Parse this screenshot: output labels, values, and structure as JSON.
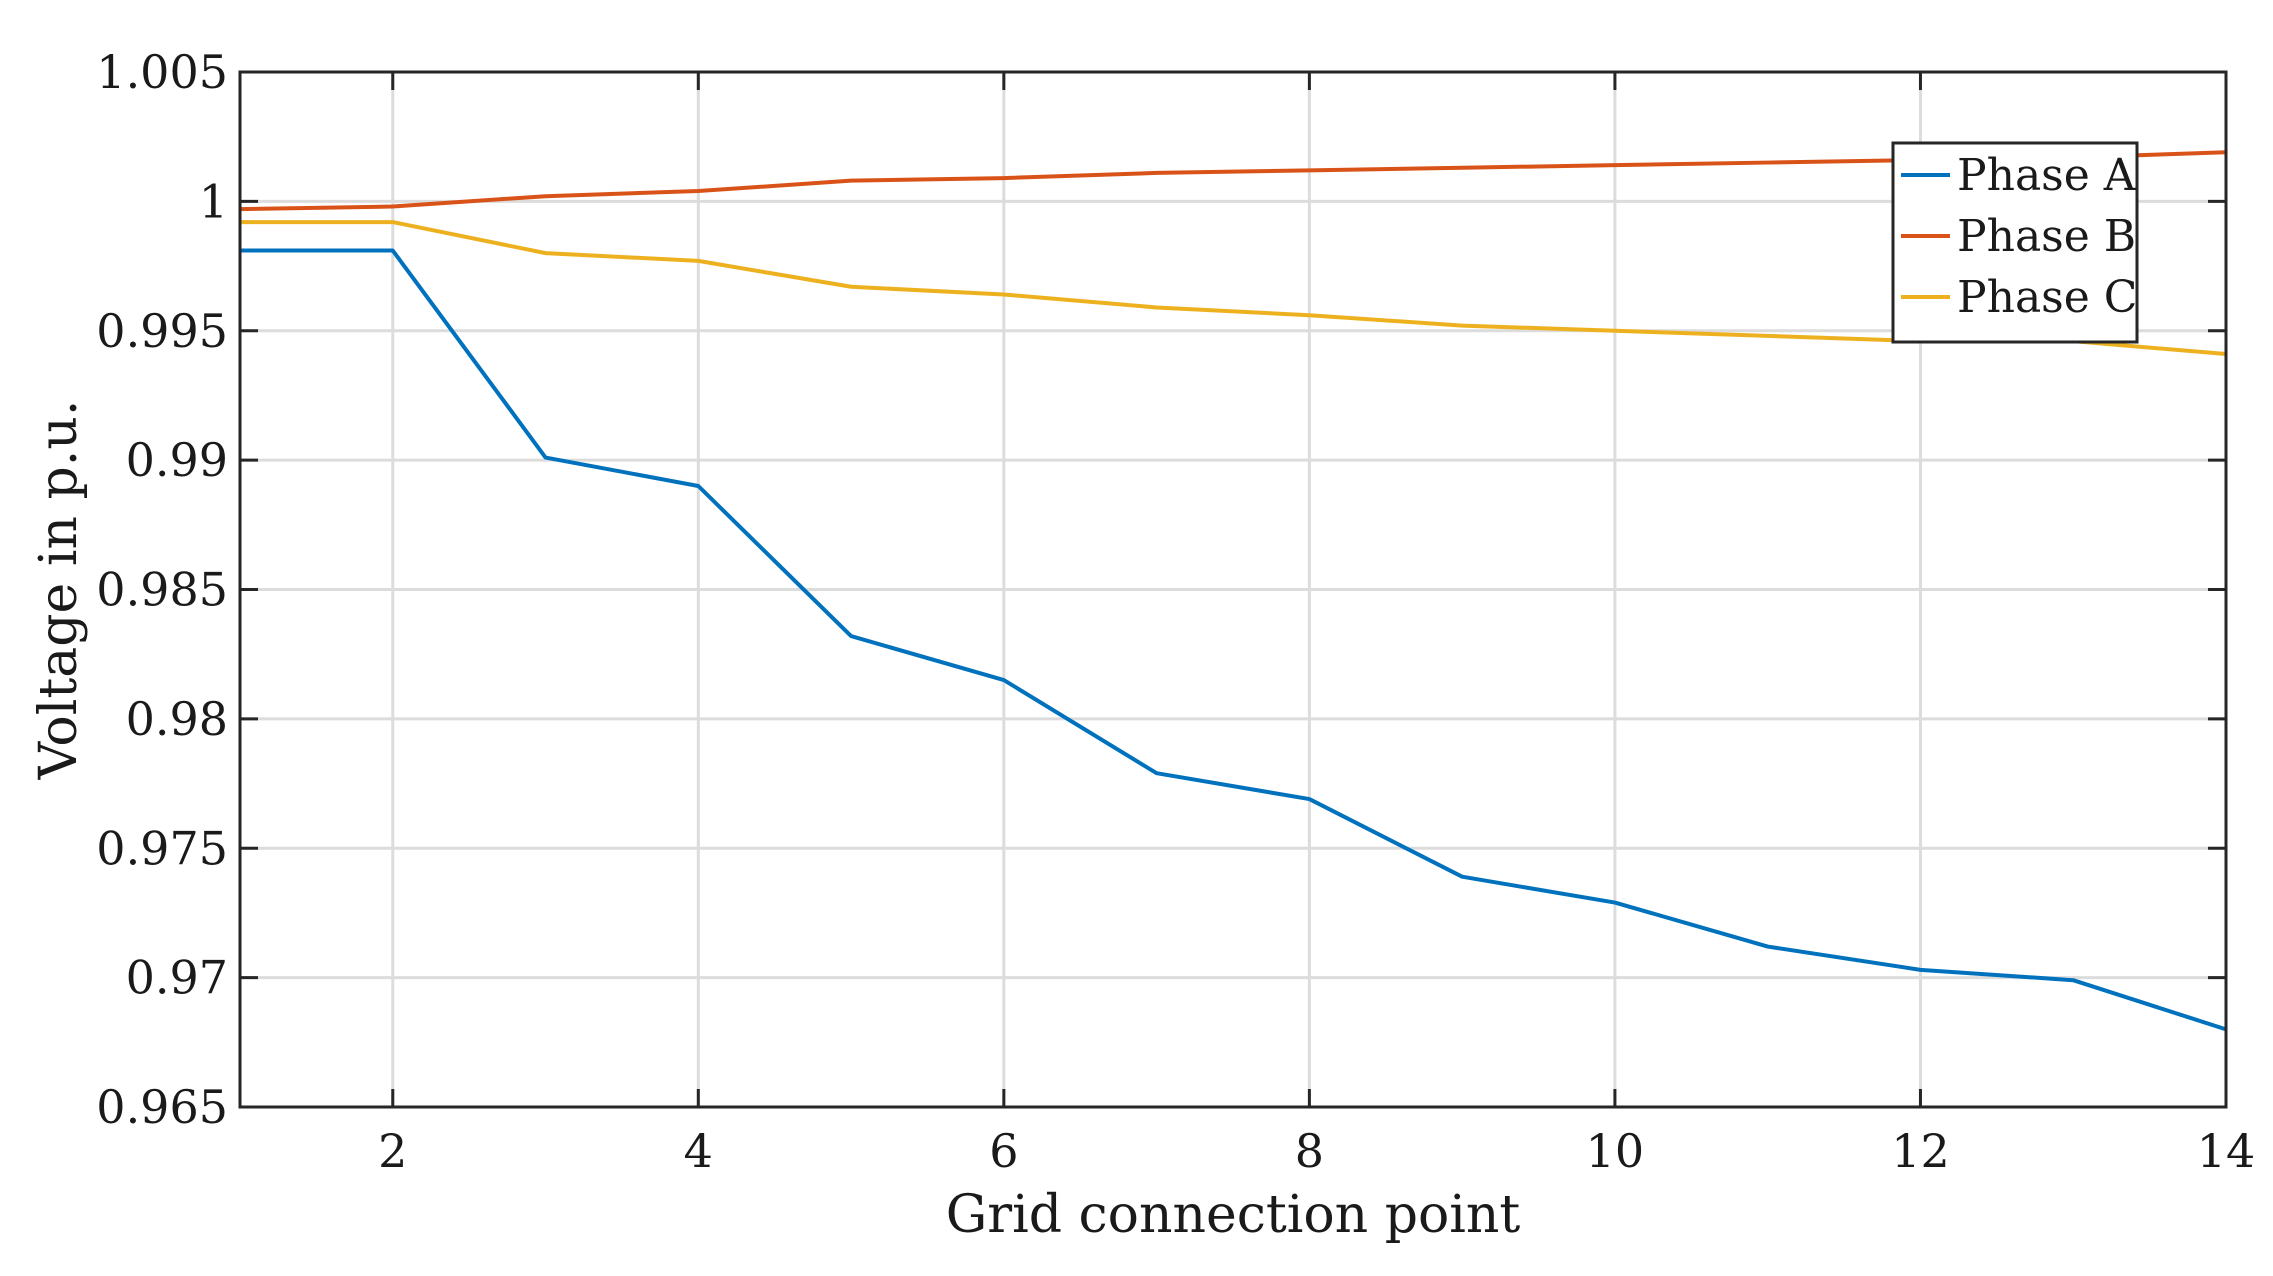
{
  "chart_data": {
    "type": "line",
    "title": "",
    "xlabel": "Grid connection point",
    "ylabel": "Voltage in p.u.",
    "xlim": [
      1,
      14
    ],
    "ylim": [
      0.965,
      1.005
    ],
    "grid": true,
    "legend_position": "top-right",
    "x": [
      1,
      2,
      3,
      4,
      5,
      6,
      7,
      8,
      9,
      10,
      11,
      12,
      13,
      14
    ],
    "x_ticks": [
      2,
      4,
      6,
      8,
      10,
      12,
      14
    ],
    "x_tick_labels": [
      "2",
      "4",
      "6",
      "8",
      "10",
      "12",
      "14"
    ],
    "y_ticks": [
      0.965,
      0.97,
      0.975,
      0.98,
      0.985,
      0.99,
      0.995,
      1,
      1.005
    ],
    "y_tick_labels": [
      "0.965",
      "0.97",
      "0.975",
      "0.98",
      "0.985",
      "0.99",
      "0.995",
      "1",
      "1.005"
    ],
    "series": [
      {
        "name": "Phase A",
        "color": "#0072BD",
        "values": [
          0.9981,
          0.9981,
          0.9901,
          0.989,
          0.9832,
          0.9815,
          0.9779,
          0.9769,
          0.9739,
          0.9729,
          0.9712,
          0.9703,
          0.9699,
          0.968
        ]
      },
      {
        "name": "Phase B",
        "color": "#D95319",
        "values": [
          0.9997,
          0.9998,
          1.0002,
          1.0004,
          1.0008,
          1.0009,
          1.0011,
          1.0012,
          1.0013,
          1.0014,
          1.0015,
          1.0016,
          1.0017,
          1.0019
        ]
      },
      {
        "name": "Phase C",
        "color": "#EDB120",
        "values": [
          0.9992,
          0.9992,
          0.998,
          0.9977,
          0.9967,
          0.9964,
          0.9959,
          0.9956,
          0.9952,
          0.995,
          0.9948,
          0.9946,
          0.9946,
          0.9941
        ]
      }
    ]
  }
}
